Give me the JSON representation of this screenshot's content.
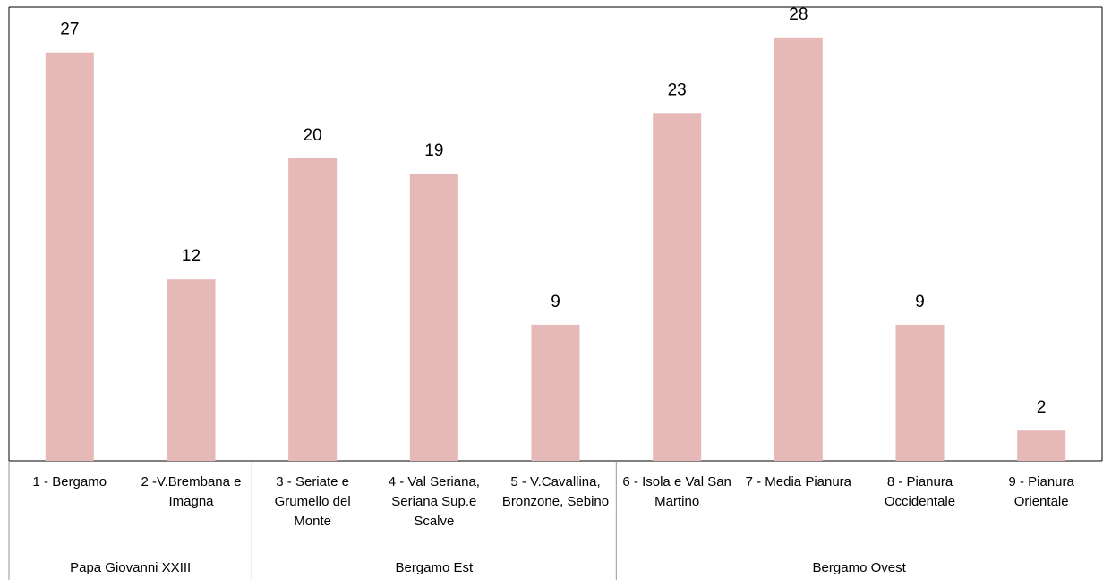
{
  "chart_data": {
    "type": "bar",
    "color": "#e6b8b7",
    "ylim": [
      0,
      30
    ],
    "groups": [
      {
        "name": "Papa Giovanni XXIII",
        "categories": [
          "1 - Bergamo",
          "2 -V.Brembana e Imagna"
        ],
        "values": [
          27,
          12
        ]
      },
      {
        "name": "Bergamo Est",
        "categories": [
          "3 - Seriate e Grumello del Monte",
          "4 - Val Seriana, Seriana Sup.e Scalve",
          "5 - V.Cavallina, Bronzone, Sebino"
        ],
        "values": [
          20,
          19,
          9
        ]
      },
      {
        "name": "Bergamo Ovest",
        "categories": [
          "6 - Isola e Val San Martino",
          "7 - Media Pianura",
          "8 - Pianura Occidentale",
          "9 - Pianura Orientale"
        ],
        "values": [
          23,
          28,
          9,
          2
        ]
      }
    ]
  }
}
